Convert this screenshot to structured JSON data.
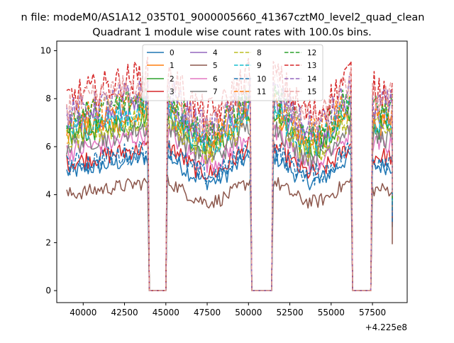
{
  "suptitle": "n file: modeM0/AS1A12_035T01_9000005660_41367cztM0_level2_quad_clean",
  "chart_data": {
    "type": "line",
    "title": "Quadrant 1 module wise count rates with 100.0s bins.",
    "xlabel": "",
    "ylabel": "",
    "x_offset_label": "+4.225e8",
    "xlim": [
      38400,
      59600
    ],
    "ylim": [
      -0.5,
      10.4
    ],
    "xticks": [
      40000,
      42500,
      45000,
      47500,
      50000,
      52500,
      55000,
      57500
    ],
    "xtick_labels": [
      "40000",
      "42500",
      "45000",
      "47500",
      "50000",
      "52500",
      "55000",
      "57500"
    ],
    "yticks": [
      0,
      2,
      4,
      6,
      8,
      10
    ],
    "ytick_labels": [
      "0",
      "2",
      "4",
      "6",
      "8",
      "10"
    ],
    "gaps": [
      [
        44000,
        45000
      ],
      [
        50200,
        51400
      ],
      [
        56300,
        57400
      ]
    ],
    "segments": [
      [
        39000,
        43900
      ],
      [
        45100,
        50100
      ],
      [
        51500,
        56200
      ],
      [
        57500,
        58700
      ]
    ],
    "legend": {
      "position": "upper-center",
      "ncol": 4,
      "entries": [
        "0",
        "1",
        "2",
        "3",
        "4",
        "5",
        "6",
        "7",
        "8",
        "9",
        "10",
        "11",
        "12",
        "13",
        "14",
        "15"
      ]
    },
    "series": [
      {
        "name": "0",
        "level": 5.3,
        "color": "#1f77b4",
        "style": "solid"
      },
      {
        "name": "1",
        "level": 7.0,
        "color": "#ff7f0e",
        "style": "solid"
      },
      {
        "name": "2",
        "level": 6.9,
        "color": "#2ca02c",
        "style": "solid"
      },
      {
        "name": "3",
        "level": 5.7,
        "color": "#d62728",
        "style": "solid"
      },
      {
        "name": "4",
        "level": 7.4,
        "color": "#9467bd",
        "style": "solid"
      },
      {
        "name": "5",
        "level": 4.3,
        "color": "#8c564b",
        "style": "solid"
      },
      {
        "name": "6",
        "level": 6.2,
        "color": "#e377c2",
        "style": "solid"
      },
      {
        "name": "7",
        "level": 6.5,
        "color": "#7f7f7f",
        "style": "solid"
      },
      {
        "name": "8",
        "level": 6.8,
        "color": "#bcbd22",
        "style": "dashed"
      },
      {
        "name": "9",
        "level": 7.2,
        "color": "#17becf",
        "style": "dashed"
      },
      {
        "name": "10",
        "level": 5.6,
        "color": "#1f77b4",
        "style": "dashed"
      },
      {
        "name": "11",
        "level": 7.6,
        "color": "#ff7f0e",
        "style": "dashed"
      },
      {
        "name": "12",
        "level": 7.7,
        "color": "#2ca02c",
        "style": "dashed"
      },
      {
        "name": "13",
        "level": 8.6,
        "color": "#d62728",
        "style": "dashed"
      },
      {
        "name": "14",
        "level": 7.9,
        "color": "#9467bd",
        "style": "dashed"
      },
      {
        "name": "15",
        "level": 8.2,
        "color": "#e8a0a0",
        "style": "dashed"
      }
    ]
  }
}
